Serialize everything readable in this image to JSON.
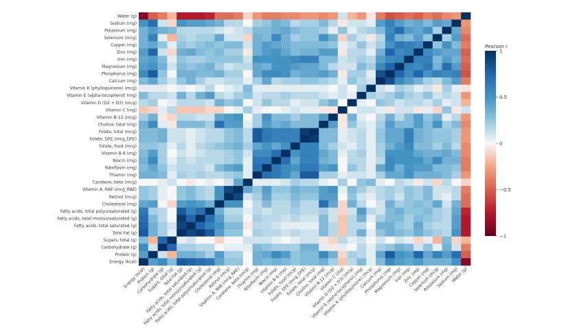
{
  "chart_data": {
    "type": "heatmap",
    "title": "",
    "colorbar": {
      "label": "Pearson r",
      "range": [
        -1,
        1
      ],
      "ticks": [
        1,
        0.5,
        0,
        -0.5,
        -1
      ],
      "tick_labels": [
        "1",
        "0.5",
        "0",
        "−0.5",
        "−1"
      ],
      "colors": {
        "positive": "#053061",
        "zero": "#f7f7f7",
        "negative": "#67001f"
      }
    },
    "rows": [
      "Water (g)",
      "Sodium (mg)",
      "Potassium (mg)",
      "Selenium (mcg)",
      "Copper (mg)",
      "Zinc (mg)",
      "Iron (mg)",
      "Magnesium (mg)",
      "Phosphorus (mg)",
      "Calcium (mg)",
      "Vitamin K (phylloquinone) (mcg)",
      "Vitamin E (alpha-tocopherol) (mg)",
      "Vitamin D (D2 + D3) (mcg)",
      "Vitamin C (mg)",
      "Vitamin B-12 (mcg)",
      "Choline, total (mg)",
      "Folate, total (mcg)",
      "Folate, DFE (mcg_DFE)",
      "Folate, food (mcg)",
      "Vitamin B-6 (mg)",
      "Niacin (mg)",
      "Riboflavin (mg)",
      "Thiamin (mg)",
      "Carotene, beta (mcg)",
      "Vitamin A, RAE (mcg_RAE)",
      "Retinol (mcg)",
      "Cholesterol (mg)",
      "Fatty acids, total polyunsaturated (g)",
      "Fatty acids, total monounsaturated (g)",
      "Fatty acids, total saturated (g)",
      "Total Fat (g)",
      "Sugars, total (g)",
      "Carbohydrate (g)",
      "Protein (g)",
      "Energy (kcal)"
    ],
    "columns": [
      "Energy (kcal)",
      "Protein (g)",
      "Carbohydrate (g)",
      "Sugars, total (g)",
      "Total Fat (g)",
      "Fatty acids, total saturated (g)",
      "Fatty acids, total monounsaturated (g)",
      "Fatty acids, total polyunsaturated (g)",
      "Cholesterol (mg)",
      "Retinol (mcg)",
      "Vitamin A, RAE (mcg_RAE)",
      "Carotene, beta (mcg)",
      "Thiamin (mg)",
      "Riboflavin (mg)",
      "Niacin (mg)",
      "Vitamin B-6 (mg)",
      "Folate, food (mcg)",
      "Folate, DFE (mcg_DFE)",
      "Folate, total (mcg)",
      "Choline, total (mg)",
      "Vitamin B-12 (mcg)",
      "Vitamin C (mg)",
      "Vitamin D (D2 + D3) (mcg)",
      "Vitamin E (alpha-tocopherol) (mg)",
      "Vitamin K (phylloquinone) (mcg)",
      "Calcium (mg)",
      "Phosphorus (mg)",
      "Magnesium (mg)",
      "Iron (mg)",
      "Zinc (mg)",
      "Copper (mg)",
      "Selenium (mcg)",
      "Potassium (mg)",
      "Sodium (mg)",
      "Water (g)"
    ],
    "matrix": [
      [
        -0.9,
        -0.5,
        -0.4,
        -0.2,
        -0.75,
        -0.75,
        -0.75,
        -0.7,
        -0.45,
        -0.45,
        -0.4,
        -0.1,
        -0.3,
        -0.4,
        -0.4,
        -0.35,
        -0.35,
        -0.3,
        -0.3,
        -0.35,
        -0.3,
        0.1,
        -0.2,
        -0.3,
        -0.05,
        -0.4,
        -0.55,
        -0.5,
        -0.45,
        -0.5,
        -0.4,
        -0.45,
        -0.35,
        -0.3,
        1
      ],
      [
        0.5,
        0.7,
        0.1,
        -0.1,
        0.5,
        0.45,
        0.45,
        0.4,
        0.35,
        0.15,
        0.15,
        0,
        0.2,
        0.25,
        0.35,
        0.3,
        0.15,
        0.2,
        0.2,
        0.3,
        0.15,
        -0.05,
        0.1,
        0.1,
        0.05,
        0.45,
        0.6,
        0.45,
        0.35,
        0.4,
        0.3,
        0.45,
        0.4,
        1,
        -0.3
      ],
      [
        0.35,
        0.45,
        0.35,
        0.3,
        0.15,
        0.15,
        0.15,
        0.15,
        0.1,
        0.05,
        0.1,
        0.15,
        0.3,
        0.3,
        0.35,
        0.4,
        0.3,
        0.25,
        0.25,
        0.2,
        0.05,
        0.25,
        0.05,
        0.15,
        0.2,
        0.3,
        0.55,
        0.7,
        0.45,
        0.4,
        0.5,
        0.2,
        1,
        0.4,
        -0.35
      ],
      [
        0.35,
        0.6,
        0.05,
        -0.2,
        0.2,
        0.15,
        0.2,
        0.2,
        0.4,
        0.1,
        0.1,
        -0.1,
        0.35,
        0.3,
        0.55,
        0.35,
        0.2,
        0.25,
        0.25,
        0.5,
        0.35,
        -0.1,
        0.2,
        0.1,
        -0.05,
        0.15,
        0.6,
        0.35,
        0.3,
        0.45,
        0.25,
        1,
        0.2,
        0.45,
        -0.45
      ],
      [
        0.35,
        0.4,
        0.25,
        0.05,
        0.25,
        0.2,
        0.25,
        0.3,
        0.25,
        0.3,
        0.3,
        0.1,
        0.35,
        0.45,
        0.4,
        0.35,
        0.3,
        0.3,
        0.3,
        0.3,
        0.25,
        0.05,
        0.1,
        0.25,
        0.1,
        0.2,
        0.5,
        0.65,
        0.6,
        0.55,
        1,
        0.25,
        0.5,
        0.3,
        -0.4
      ],
      [
        0.45,
        0.75,
        0.1,
        -0.1,
        0.35,
        0.4,
        0.3,
        0.25,
        0.3,
        0.2,
        0.2,
        -0.05,
        0.35,
        0.45,
        0.5,
        0.4,
        0.3,
        0.35,
        0.35,
        0.45,
        0.45,
        -0.05,
        0.15,
        0.15,
        0.05,
        0.35,
        0.75,
        0.55,
        0.6,
        1,
        0.55,
        0.45,
        0.4,
        0.4,
        -0.5
      ],
      [
        0.4,
        0.45,
        0.3,
        0.05,
        0.25,
        0.2,
        0.2,
        0.25,
        0.25,
        0.25,
        0.25,
        0.1,
        0.5,
        0.5,
        0.5,
        0.5,
        0.55,
        0.6,
        0.6,
        0.3,
        0.3,
        0.1,
        0.15,
        0.2,
        0.15,
        0.45,
        0.55,
        0.6,
        1,
        0.6,
        0.6,
        0.3,
        0.45,
        0.35,
        -0.45
      ],
      [
        0.45,
        0.5,
        0.35,
        0.1,
        0.3,
        0.25,
        0.3,
        0.35,
        0.2,
        0.1,
        0.15,
        0.15,
        0.4,
        0.35,
        0.5,
        0.5,
        0.45,
        0.4,
        0.4,
        0.3,
        0.15,
        0.1,
        0.1,
        0.3,
        0.2,
        0.55,
        0.75,
        1,
        0.6,
        0.55,
        0.65,
        0.35,
        0.7,
        0.45,
        -0.5
      ],
      [
        0.55,
        0.8,
        0.25,
        0,
        0.35,
        0.35,
        0.3,
        0.3,
        0.35,
        0.2,
        0.2,
        0,
        0.4,
        0.55,
        0.55,
        0.5,
        0.35,
        0.4,
        0.4,
        0.45,
        0.35,
        -0.05,
        0.2,
        0.2,
        0.05,
        0.85,
        1,
        0.75,
        0.55,
        0.75,
        0.5,
        0.6,
        0.55,
        0.6,
        -0.55
      ],
      [
        0.3,
        0.4,
        0.2,
        0.1,
        0.25,
        0.35,
        0.2,
        0.1,
        0.1,
        0.15,
        0.15,
        0.05,
        0.2,
        0.4,
        0.15,
        0.2,
        0.2,
        0.25,
        0.25,
        0.2,
        0.15,
        0.05,
        0.25,
        0.15,
        0.1,
        1,
        0.85,
        0.55,
        0.45,
        0.35,
        0.2,
        0.15,
        0.3,
        0.45,
        -0.4
      ],
      [
        0.05,
        0.05,
        0.05,
        0,
        0.05,
        0,
        0.05,
        0.15,
        0,
        0.05,
        0.1,
        0.3,
        0.05,
        0.05,
        0.05,
        0.05,
        0.05,
        0.05,
        0.05,
        0.05,
        0,
        0.1,
        0,
        0.2,
        1,
        0.1,
        0.05,
        0.2,
        0.15,
        0.05,
        0.1,
        -0.05,
        0.2,
        0.05,
        -0.05
      ],
      [
        0.3,
        0.15,
        0.15,
        0.1,
        0.35,
        0.15,
        0.35,
        0.45,
        0.15,
        0.1,
        0.2,
        0.25,
        0.1,
        0.15,
        0.15,
        0.2,
        0.15,
        0.15,
        0.15,
        0.1,
        0.05,
        0.1,
        0.05,
        1,
        0.2,
        0.15,
        0.2,
        0.3,
        0.2,
        0.15,
        0.25,
        0.1,
        0.15,
        0.1,
        -0.3
      ],
      [
        0.15,
        0.2,
        0,
        0.05,
        0.15,
        0.15,
        0.15,
        0.1,
        0.35,
        0.25,
        0.3,
        0,
        0.1,
        0.25,
        0.15,
        0.15,
        0.05,
        0.1,
        0.1,
        0.25,
        0.35,
        0,
        1,
        0.05,
        0,
        0.25,
        0.2,
        0.1,
        0.15,
        0.15,
        0.1,
        0.2,
        0.05,
        0.1,
        -0.2
      ],
      [
        -0.15,
        -0.1,
        0.05,
        0.15,
        -0.15,
        -0.15,
        -0.15,
        -0.1,
        -0.1,
        0,
        0.05,
        0.2,
        0.05,
        0,
        0,
        0.05,
        0.1,
        0.05,
        0.05,
        -0.05,
        -0.05,
        1,
        0,
        0.1,
        0.1,
        0.05,
        -0.05,
        0.1,
        0.1,
        -0.05,
        0.05,
        -0.1,
        0.25,
        -0.05,
        0.1
      ],
      [
        0.2,
        0.35,
        -0.05,
        -0.1,
        0.15,
        0.15,
        0.1,
        0.1,
        0.4,
        0.45,
        0.5,
        0,
        0.2,
        0.5,
        0.3,
        0.3,
        0.2,
        0.3,
        0.3,
        0.45,
        1,
        -0.05,
        0.35,
        0.05,
        0,
        0.15,
        0.35,
        0.15,
        0.3,
        0.45,
        0.25,
        0.35,
        0.05,
        0.15,
        -0.3
      ],
      [
        0.35,
        0.55,
        0.05,
        -0.05,
        0.3,
        0.3,
        0.3,
        0.2,
        0.7,
        0.45,
        0.45,
        0.05,
        0.2,
        0.45,
        0.35,
        0.4,
        0.3,
        0.3,
        0.3,
        1,
        0.45,
        -0.05,
        0.25,
        0.1,
        0.05,
        0.2,
        0.45,
        0.3,
        0.3,
        0.45,
        0.3,
        0.5,
        0.2,
        0.3,
        -0.35
      ],
      [
        0.3,
        0.3,
        0.35,
        0.1,
        0.1,
        0.05,
        0.1,
        0.15,
        0.15,
        0.25,
        0.3,
        0.15,
        0.8,
        0.65,
        0.6,
        0.6,
        0.6,
        0.95,
        1,
        0.3,
        0.3,
        0.05,
        0.1,
        0.15,
        0.05,
        0.25,
        0.4,
        0.4,
        0.6,
        0.35,
        0.3,
        0.25,
        0.25,
        0.2,
        -0.3
      ],
      [
        0.3,
        0.3,
        0.35,
        0.1,
        0.1,
        0.05,
        0.1,
        0.15,
        0.15,
        0.25,
        0.3,
        0.15,
        0.8,
        0.65,
        0.6,
        0.6,
        0.6,
        1,
        0.95,
        0.3,
        0.3,
        0.05,
        0.1,
        0.15,
        0.05,
        0.25,
        0.4,
        0.4,
        0.6,
        0.35,
        0.3,
        0.25,
        0.25,
        0.2,
        -0.3
      ],
      [
        0.25,
        0.25,
        0.2,
        0.05,
        0.15,
        0.05,
        0.15,
        0.2,
        0.25,
        0.3,
        0.35,
        0.2,
        0.4,
        0.5,
        0.4,
        0.5,
        1,
        0.6,
        0.6,
        0.3,
        0.2,
        0.1,
        0.05,
        0.15,
        0.05,
        0.2,
        0.35,
        0.45,
        0.55,
        0.3,
        0.3,
        0.2,
        0.3,
        0.15,
        -0.35
      ],
      [
        0.3,
        0.45,
        0.2,
        0,
        0.1,
        0.05,
        0.1,
        0.15,
        0.15,
        0.2,
        0.25,
        0.1,
        0.55,
        0.55,
        0.7,
        1,
        0.5,
        0.6,
        0.6,
        0.4,
        0.3,
        0.05,
        0.15,
        0.2,
        0.05,
        0.2,
        0.5,
        0.5,
        0.5,
        0.4,
        0.35,
        0.35,
        0.4,
        0.3,
        -0.35
      ],
      [
        0.35,
        0.55,
        0.2,
        0.05,
        0.15,
        0.1,
        0.15,
        0.15,
        0.15,
        0.2,
        0.25,
        0.05,
        0.65,
        0.65,
        1,
        0.7,
        0.4,
        0.6,
        0.6,
        0.35,
        0.3,
        0,
        0.15,
        0.15,
        0.05,
        0.15,
        0.55,
        0.5,
        0.5,
        0.5,
        0.4,
        0.55,
        0.35,
        0.35,
        -0.4
      ],
      [
        0.3,
        0.4,
        0.25,
        0.1,
        0.15,
        0.15,
        0.15,
        0.1,
        0.3,
        0.4,
        0.45,
        0.05,
        0.7,
        1,
        0.65,
        0.55,
        0.5,
        0.65,
        0.65,
        0.45,
        0.5,
        0,
        0.25,
        0.15,
        0.05,
        0.4,
        0.55,
        0.35,
        0.5,
        0.45,
        0.45,
        0.3,
        0.3,
        0.25,
        -0.4
      ],
      [
        0.35,
        0.35,
        0.3,
        0.05,
        0.2,
        0.15,
        0.2,
        0.15,
        0.15,
        0.2,
        0.25,
        0.05,
        1,
        0.7,
        0.65,
        0.55,
        0.4,
        0.8,
        0.8,
        0.2,
        0.2,
        0.05,
        0.1,
        0.1,
        0.05,
        0.2,
        0.4,
        0.4,
        0.5,
        0.35,
        0.35,
        0.35,
        0.3,
        0.2,
        -0.3
      ],
      [
        0,
        0,
        0.05,
        0.1,
        0,
        -0.05,
        0,
        0.05,
        0,
        0.1,
        0.4,
        1,
        0.05,
        0.05,
        0.05,
        0.1,
        0.2,
        0.15,
        0.15,
        0.05,
        0,
        0.2,
        0,
        0.25,
        0.3,
        0.05,
        0,
        0.15,
        0.1,
        -0.05,
        0.1,
        -0.1,
        0.15,
        0,
        -0.1
      ],
      [
        0.25,
        0.2,
        0.05,
        0,
        0.25,
        0.3,
        0.2,
        0.15,
        0.5,
        0.9,
        1,
        0.4,
        0.25,
        0.45,
        0.25,
        0.25,
        0.35,
        0.3,
        0.3,
        0.45,
        0.5,
        0.05,
        0.3,
        0.2,
        0.1,
        0.15,
        0.2,
        0.15,
        0.25,
        0.2,
        0.3,
        0.1,
        0.1,
        0.15,
        -0.4
      ],
      [
        0.25,
        0.2,
        0.05,
        0,
        0.25,
        0.3,
        0.2,
        0.15,
        0.5,
        1,
        0.9,
        0.1,
        0.2,
        0.4,
        0.2,
        0.2,
        0.3,
        0.25,
        0.25,
        0.45,
        0.45,
        0,
        0.25,
        0.1,
        0.05,
        0.15,
        0.2,
        0.1,
        0.25,
        0.2,
        0.3,
        0.1,
        0.05,
        0.15,
        -0.45
      ],
      [
        0.4,
        0.45,
        0,
        -0.1,
        0.45,
        0.5,
        0.45,
        0.35,
        1,
        0.5,
        0.5,
        0,
        0.15,
        0.3,
        0.15,
        0.15,
        0.25,
        0.15,
        0.15,
        0.7,
        0.4,
        -0.1,
        0.35,
        0.15,
        0,
        0.1,
        0.35,
        0.2,
        0.25,
        0.3,
        0.25,
        0.4,
        0.1,
        0.35,
        -0.45
      ],
      [
        0.65,
        0.2,
        0.15,
        0,
        0.8,
        0.6,
        0.7,
        1,
        0.35,
        0.15,
        0.15,
        0.05,
        0.15,
        0.1,
        0.15,
        0.15,
        0.2,
        0.15,
        0.15,
        0.2,
        0.1,
        -0.1,
        0.1,
        0.45,
        0.15,
        0.1,
        0.3,
        0.35,
        0.25,
        0.25,
        0.3,
        0.2,
        0.15,
        0.4,
        -0.7
      ],
      [
        0.7,
        0.3,
        0.15,
        0,
        0.95,
        0.75,
        1,
        0.7,
        0.45,
        0.2,
        0.2,
        0,
        0.2,
        0.15,
        0.15,
        0.1,
        0.15,
        0.1,
        0.1,
        0.3,
        0.1,
        -0.15,
        0.15,
        0.35,
        0.05,
        0.2,
        0.3,
        0.3,
        0.2,
        0.3,
        0.25,
        0.2,
        0.15,
        0.45,
        -0.75
      ],
      [
        0.75,
        0.35,
        0.2,
        0.1,
        0.9,
        1,
        0.75,
        0.6,
        0.5,
        0.3,
        0.3,
        -0.05,
        0.15,
        0.15,
        0.1,
        0.05,
        0.05,
        0.05,
        0.05,
        0.3,
        0.15,
        -0.15,
        0.15,
        0.15,
        0,
        0.35,
        0.35,
        0.25,
        0.2,
        0.4,
        0.2,
        0.15,
        0.15,
        0.45,
        -0.75
      ],
      [
        0.8,
        0.35,
        0.2,
        0.05,
        1,
        0.9,
        0.95,
        0.8,
        0.45,
        0.25,
        0.25,
        0,
        0.2,
        0.15,
        0.15,
        0.1,
        0.15,
        0.1,
        0.1,
        0.3,
        0.15,
        -0.15,
        0.15,
        0.35,
        0.05,
        0.25,
        0.35,
        0.3,
        0.25,
        0.35,
        0.25,
        0.2,
        0.15,
        0.5,
        -0.75
      ],
      [
        0.3,
        -0.2,
        0.75,
        1,
        0.05,
        0.1,
        0,
        0,
        -0.1,
        0,
        0,
        0.1,
        0.1,
        0.1,
        0.05,
        0,
        0.05,
        0.1,
        0.1,
        -0.05,
        -0.1,
        0.15,
        0.05,
        0.1,
        0,
        0.1,
        0,
        0.1,
        0.05,
        -0.1,
        0.05,
        -0.2,
        0.3,
        -0.1,
        -0.2
      ],
      [
        0.55,
        0.1,
        1,
        0.75,
        0.2,
        0.2,
        0.15,
        0.15,
        0,
        0.05,
        0.05,
        0.05,
        0.3,
        0.25,
        0.2,
        0.2,
        0.2,
        0.35,
        0.35,
        0.05,
        -0.05,
        0.05,
        0,
        0.15,
        0.05,
        0.2,
        0.25,
        0.35,
        0.3,
        0.1,
        0.25,
        0.05,
        0.35,
        0.1,
        -0.4
      ],
      [
        0.45,
        1,
        0.1,
        -0.2,
        0.35,
        0.35,
        0.3,
        0.2,
        0.45,
        0.2,
        0.2,
        0,
        0.35,
        0.4,
        0.55,
        0.45,
        0.25,
        0.3,
        0.3,
        0.55,
        0.35,
        -0.1,
        0.2,
        0.15,
        0.05,
        0.4,
        0.8,
        0.5,
        0.45,
        0.75,
        0.4,
        0.6,
        0.45,
        0.7,
        -0.5
      ],
      [
        1,
        0.45,
        0.55,
        0.3,
        0.8,
        0.75,
        0.7,
        0.65,
        0.4,
        0.25,
        0.25,
        0,
        0.35,
        0.3,
        0.35,
        0.3,
        0.25,
        0.3,
        0.3,
        0.35,
        0.2,
        -0.15,
        0.15,
        0.3,
        0.05,
        0.3,
        0.55,
        0.45,
        0.4,
        0.45,
        0.35,
        0.35,
        0.35,
        0.5,
        -0.9
      ]
    ]
  }
}
